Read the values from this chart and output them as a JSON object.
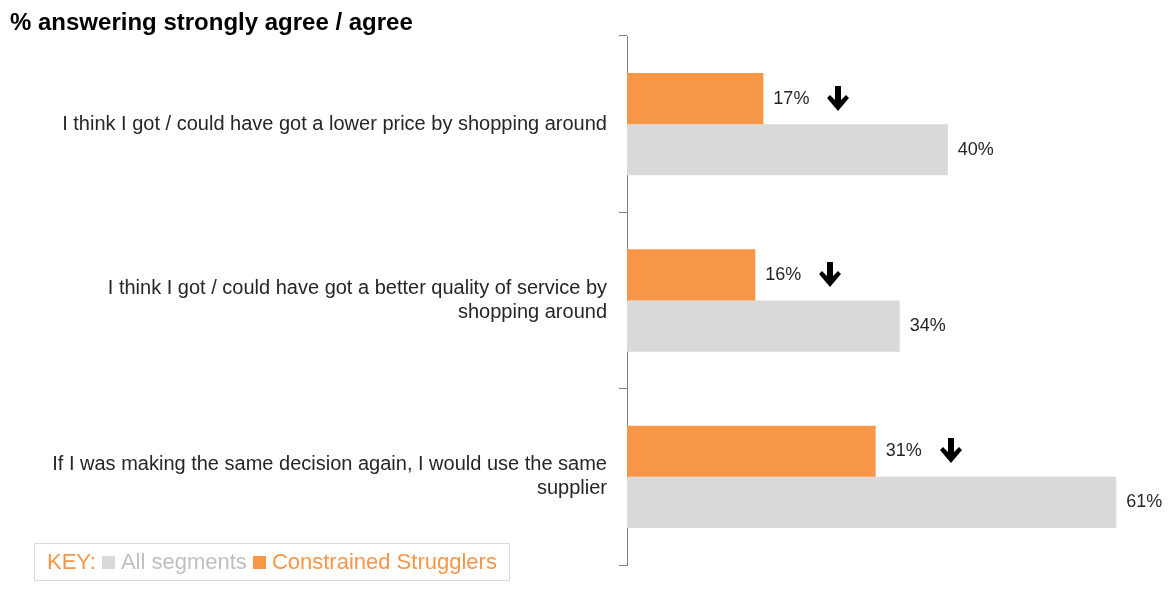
{
  "chart_data": {
    "type": "bar",
    "orientation": "horizontal",
    "title": "% answering strongly agree / agree",
    "legend_title": "KEY:",
    "legend": "bottom left",
    "categories": [
      "I think I got / could have got a lower price by shopping around",
      "I think I got / could have got a better quality of service by shopping around",
      "If I was making the same decision again, I would use the same supplier"
    ],
    "series": [
      {
        "name": "Constrained Strugglers",
        "color": "#f79646",
        "values": [
          17,
          16,
          31
        ],
        "value_labels": [
          "17%",
          "16%",
          "31%"
        ]
      },
      {
        "name": "All segments",
        "color": "#d9d9d9",
        "values": [
          40,
          34,
          61
        ],
        "value_labels": [
          "40%",
          "34%",
          "61%"
        ]
      }
    ]
  }
}
